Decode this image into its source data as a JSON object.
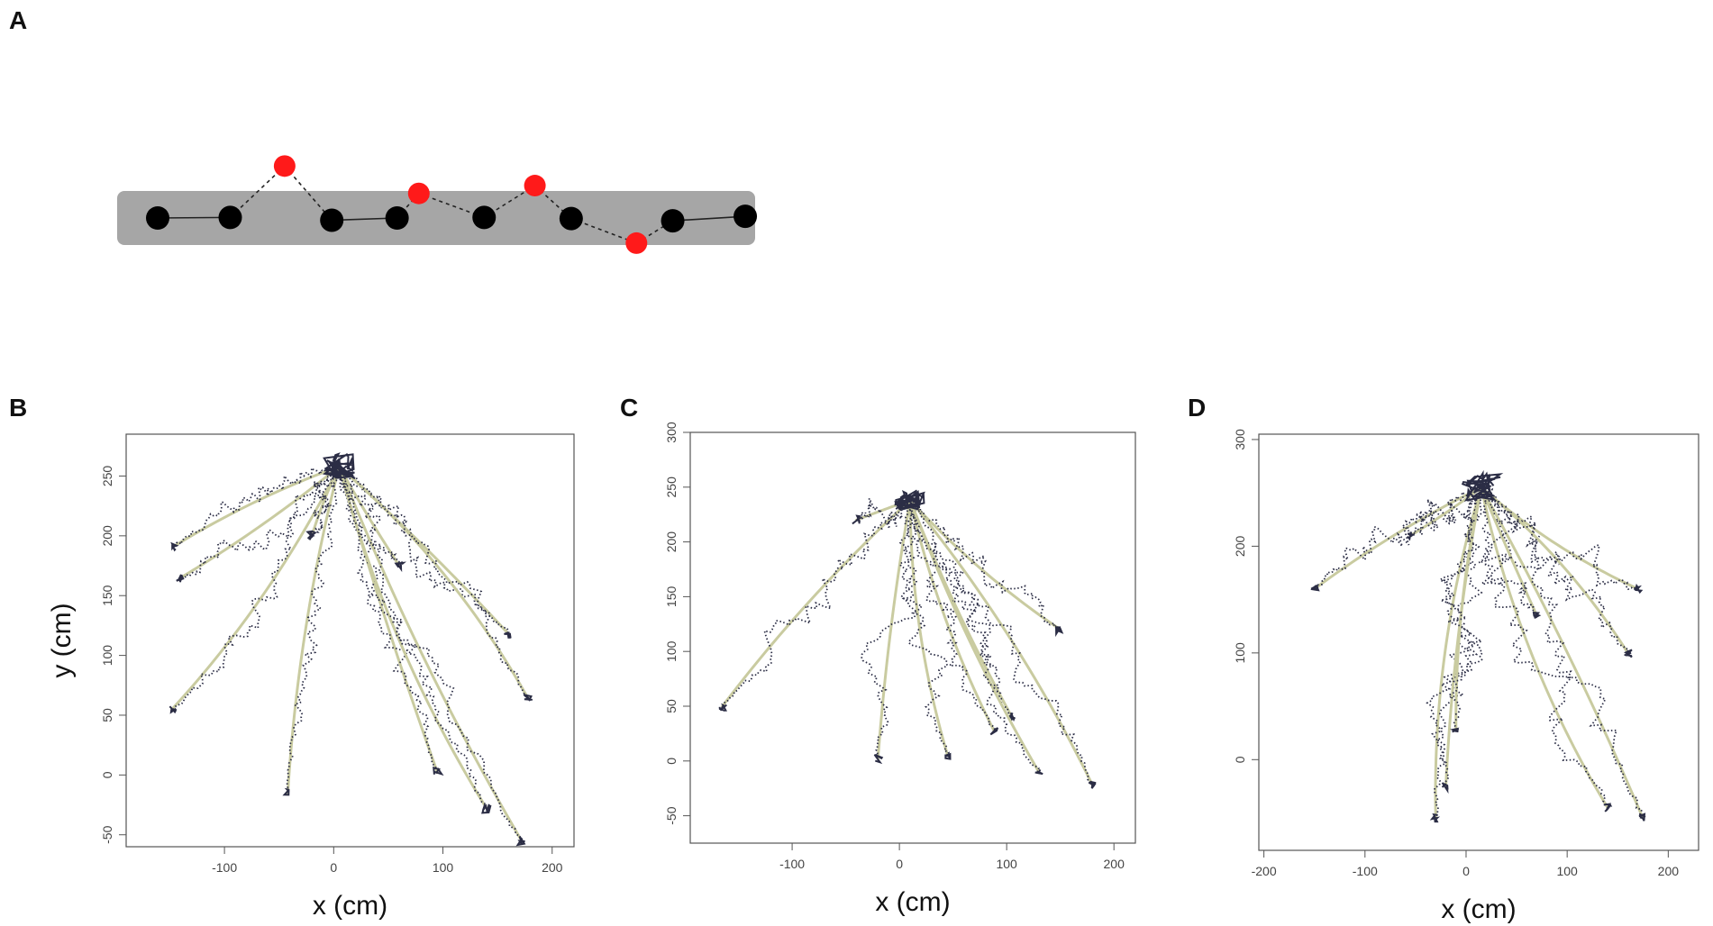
{
  "panels": {
    "A": {
      "letter": "A"
    },
    "B": {
      "letter": "B"
    },
    "C": {
      "letter": "C"
    },
    "D": {
      "letter": "D"
    }
  },
  "colors": {
    "point_normal": "#000000",
    "point_outlier": "#ff1a1a",
    "band": "#a6a6a6",
    "track_smooth": "#c9cba0",
    "track_raw": "#2b2d45",
    "axis": "#555555"
  },
  "chart_data": [
    {
      "panel": "A",
      "type": "scatter",
      "title": "",
      "xlabel": "",
      "ylabel": "",
      "series": [
        {
          "points": [
            [
              0.0,
              0.0
            ],
            [
              1.0,
              0.1
            ],
            [
              2.4,
              -0.4
            ],
            [
              3.3,
              0.0
            ],
            [
              4.5,
              0.1
            ],
            [
              5.7,
              -0.1
            ],
            [
              7.1,
              -0.5
            ],
            [
              8.1,
              0.3
            ]
          ],
          "role": "within-band"
        },
        {
          "points": [
            [
              1.75,
              9.3
            ],
            [
              3.6,
              4.4
            ],
            [
              5.2,
              5.8
            ],
            [
              6.6,
              -4.5
            ]
          ],
          "role": "outlier"
        }
      ]
    },
    {
      "panel": "B",
      "type": "line",
      "xlabel": "x (cm)",
      "ylabel": "y (cm)",
      "xlim": [
        -190,
        220
      ],
      "ylim": [
        -60,
        285
      ],
      "xticks": [
        -100,
        0,
        100,
        200
      ],
      "yticks": [
        -50,
        0,
        50,
        100,
        150,
        200,
        250
      ],
      "origin": [
        5,
        258
      ],
      "endpoints": [
        [
          -145,
          192
        ],
        [
          -140,
          165
        ],
        [
          -148,
          55
        ],
        [
          -42,
          -15
        ],
        [
          95,
          2
        ],
        [
          160,
          118
        ],
        [
          178,
          64
        ],
        [
          140,
          -28
        ],
        [
          172,
          -55
        ],
        [
          -20,
          200
        ],
        [
          60,
          175
        ]
      ]
    },
    {
      "panel": "C",
      "type": "line",
      "xlabel": "x (cm)",
      "ylabel": "",
      "xlim": [
        -195,
        220
      ],
      "ylim": [
        -75,
        300
      ],
      "xticks": [
        -100,
        0,
        100,
        200
      ],
      "yticks": [
        -50,
        0,
        50,
        100,
        150,
        200,
        250,
        300
      ],
      "origin": [
        10,
        238
      ],
      "endpoints": [
        [
          -165,
          50
        ],
        [
          -20,
          2
        ],
        [
          45,
          5
        ],
        [
          88,
          28
        ],
        [
          150,
          120
        ],
        [
          180,
          -22
        ],
        [
          105,
          40
        ],
        [
          130,
          -10
        ],
        [
          -40,
          220
        ]
      ]
    },
    {
      "panel": "D",
      "type": "line",
      "xlabel": "x (cm)",
      "ylabel": "",
      "xlim": [
        -205,
        230
      ],
      "ylim": [
        -85,
        305
      ],
      "xticks": [
        -200,
        -100,
        0,
        100,
        200
      ],
      "yticks": [
        0,
        100,
        200,
        300
      ],
      "origin": [
        15,
        255
      ],
      "endpoints": [
        [
          -150,
          160
        ],
        [
          -30,
          -55
        ],
        [
          -20,
          -25
        ],
        [
          170,
          160
        ],
        [
          160,
          100
        ],
        [
          140,
          -45
        ],
        [
          175,
          -55
        ],
        [
          70,
          135
        ],
        [
          -55,
          210
        ],
        [
          -10,
          30
        ]
      ]
    }
  ]
}
